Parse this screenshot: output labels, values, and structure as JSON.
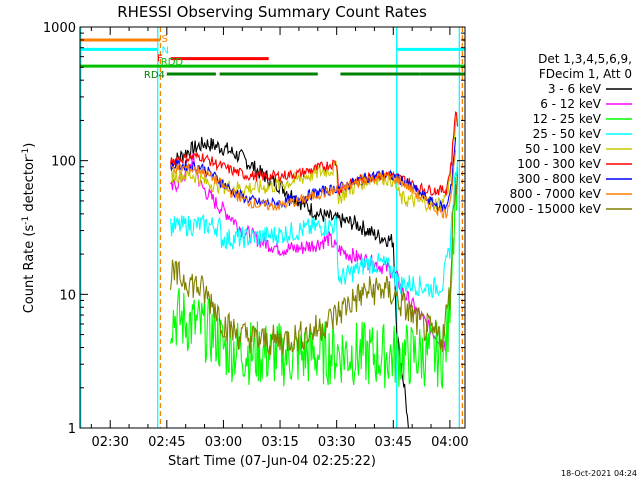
{
  "chart_data": {
    "type": "line",
    "title": "RHESSI Observing Summary Count Rates",
    "xlabel": "Start Time (07-Jun-04 02:25:22)",
    "ylabel_main": "Count Rate (s",
    "ylabel_sup1": "-1",
    "ylabel_mid": " detector",
    "ylabel_sup2": "-1",
    "ylabel_end": ")",
    "y_scale": "log",
    "xlim": [
      142,
      244
    ],
    "ylim": [
      1,
      1000
    ],
    "x_ticks": [
      {
        "v": 150,
        "label": "02:30"
      },
      {
        "v": 165,
        "label": "02:45"
      },
      {
        "v": 180,
        "label": "03:00"
      },
      {
        "v": 195,
        "label": "03:15"
      },
      {
        "v": 210,
        "label": "03:30"
      },
      {
        "v": 225,
        "label": "03:45"
      },
      {
        "v": 240,
        "label": "04:00"
      }
    ],
    "y_ticks": [
      {
        "v": 1,
        "label": "1"
      },
      {
        "v": 10,
        "label": "10"
      },
      {
        "v": 100,
        "label": "100"
      },
      {
        "v": 1000,
        "label": "1000"
      }
    ],
    "legend_header": [
      "Det 1,3,4,5,6,9,",
      "FDecim 1, Att 0"
    ],
    "legend_position": "right",
    "footer_date": "18-Oct-2021 04:24",
    "flags": [
      {
        "name": "S",
        "color": "#ff7f00",
        "segments": [
          [
            142,
            163.3
          ],
          [
            243.3,
            244
          ]
        ],
        "level_value": 800
      },
      {
        "name": "N",
        "color": "#00ffff",
        "segments": [
          [
            142,
            162.6
          ],
          [
            226,
            244
          ]
        ],
        "level_value": 680
      },
      {
        "name": "F",
        "color": "#ff0000",
        "segments": [
          [
            166,
            192
          ]
        ],
        "level_value": 580
      },
      {
        "name": "RDD",
        "color": "#00c000",
        "segments": [
          [
            142,
            244
          ]
        ],
        "level_value": 510
      },
      {
        "name": "RD4",
        "color": "#008000",
        "segments": [
          [
            165,
            178
          ],
          [
            179,
            205
          ],
          [
            211,
            232
          ],
          [
            232,
            244
          ]
        ],
        "level_value": 445
      }
    ],
    "vlines": [
      {
        "x": 142.2,
        "color": "#00ffff",
        "style": "solid"
      },
      {
        "x": 162.6,
        "color": "#00ffff",
        "style": "solid"
      },
      {
        "x": 163.3,
        "color": "#ff7f00",
        "style": "dashed"
      },
      {
        "x": 225.9,
        "color": "#00ffff",
        "style": "solid"
      },
      {
        "x": 242.5,
        "color": "#00ffff",
        "style": "solid"
      },
      {
        "x": 243.3,
        "color": "#ff7f00",
        "style": "dashed"
      }
    ],
    "series": [
      {
        "name": "3 - 6 keV",
        "color": "#000000",
        "jitter": 0.06,
        "points": [
          [
            166,
            95
          ],
          [
            170,
            115
          ],
          [
            175,
            135
          ],
          [
            180,
            125
          ],
          [
            185,
            105
          ],
          [
            190,
            80
          ],
          [
            195,
            65
          ],
          [
            200,
            50
          ],
          [
            205,
            40
          ],
          [
            210,
            36
          ],
          [
            215,
            34
          ],
          [
            220,
            28
          ],
          [
            225,
            25
          ],
          [
            226,
            5
          ],
          [
            227,
            3
          ],
          [
            228,
            2
          ],
          [
            229,
            1
          ]
        ]
      },
      {
        "name": "6 - 12 keV",
        "color": "#ff00ff",
        "jitter": 0.06,
        "points": [
          [
            166,
            60
          ],
          [
            170,
            80
          ],
          [
            172,
            100
          ],
          [
            174,
            65
          ],
          [
            178,
            48
          ],
          [
            182,
            38
          ],
          [
            185,
            30
          ],
          [
            190,
            25
          ],
          [
            195,
            22
          ],
          [
            200,
            22
          ],
          [
            205,
            24
          ],
          [
            208,
            26
          ],
          [
            210,
            22
          ],
          [
            215,
            19
          ],
          [
            220,
            17
          ],
          [
            225,
            15
          ],
          [
            228,
            10
          ],
          [
            232,
            7
          ],
          [
            236,
            5
          ],
          [
            238,
            4.5
          ],
          [
            239,
            4
          ]
        ]
      },
      {
        "name": "12 - 25 keV",
        "color": "#00ff00",
        "jitter": 0.25,
        "points": [
          [
            166,
            7
          ],
          [
            172,
            6
          ],
          [
            178,
            5
          ],
          [
            180,
            4
          ],
          [
            185,
            3.8
          ],
          [
            190,
            3.6
          ],
          [
            200,
            3.5
          ],
          [
            205,
            3.6
          ],
          [
            210,
            3.7
          ],
          [
            215,
            3.6
          ],
          [
            220,
            3.5
          ],
          [
            225,
            3.5
          ],
          [
            230,
            3.5
          ],
          [
            235,
            3.6
          ],
          [
            238,
            3.5
          ],
          [
            239.5,
            5
          ],
          [
            240.5,
            20
          ],
          [
            241.5,
            60
          ],
          [
            242,
            90
          ]
        ]
      },
      {
        "name": "25 - 50 keV",
        "color": "#00ffff",
        "jitter": 0.08,
        "points": [
          [
            166,
            32
          ],
          [
            172,
            33
          ],
          [
            176,
            33
          ],
          [
            179,
            32
          ],
          [
            179.5,
            26
          ],
          [
            182,
            26
          ],
          [
            190,
            27
          ],
          [
            195,
            28
          ],
          [
            200,
            30
          ],
          [
            205,
            32
          ],
          [
            210,
            33
          ],
          [
            210.5,
            13
          ],
          [
            213,
            14
          ],
          [
            218,
            17
          ],
          [
            222,
            17
          ],
          [
            225,
            15
          ],
          [
            226,
            12
          ],
          [
            230,
            12
          ],
          [
            235,
            11
          ],
          [
            238,
            12
          ],
          [
            240,
            22
          ],
          [
            241,
            60
          ],
          [
            242,
            100
          ]
        ]
      },
      {
        "name": "50 - 100 keV",
        "color": "#c8c800",
        "jitter": 0.06,
        "points": [
          [
            166,
            78
          ],
          [
            172,
            78
          ],
          [
            175,
            70
          ],
          [
            179,
            65
          ],
          [
            185,
            62
          ],
          [
            190,
            63
          ],
          [
            195,
            66
          ],
          [
            200,
            73
          ],
          [
            205,
            82
          ],
          [
            210,
            88
          ],
          [
            210.5,
            52
          ],
          [
            213,
            60
          ],
          [
            218,
            72
          ],
          [
            222,
            76
          ],
          [
            225,
            72
          ],
          [
            227,
            52
          ],
          [
            230,
            50
          ],
          [
            235,
            48
          ],
          [
            238,
            48
          ],
          [
            240,
            70
          ],
          [
            241,
            150
          ],
          [
            242,
            200
          ]
        ]
      },
      {
        "name": "100 - 300 keV",
        "color": "#ff0000",
        "jitter": 0.04,
        "points": [
          [
            166,
            100
          ],
          [
            170,
            105
          ],
          [
            174,
            108
          ],
          [
            178,
            95
          ],
          [
            182,
            85
          ],
          [
            186,
            78
          ],
          [
            190,
            76
          ],
          [
            195,
            77
          ],
          [
            200,
            80
          ],
          [
            205,
            88
          ],
          [
            210,
            97
          ],
          [
            210.5,
            60
          ],
          [
            215,
            70
          ],
          [
            220,
            78
          ],
          [
            224,
            78
          ],
          [
            228,
            72
          ],
          [
            232,
            62
          ],
          [
            236,
            60
          ],
          [
            239,
            60
          ],
          [
            240.5,
            100
          ],
          [
            241.5,
            250
          ],
          [
            242,
            180
          ]
        ]
      },
      {
        "name": "300 - 800 keV",
        "color": "#0000ff",
        "jitter": 0.04,
        "points": [
          [
            166,
            92
          ],
          [
            170,
            92
          ],
          [
            174,
            90
          ],
          [
            178,
            75
          ],
          [
            182,
            60
          ],
          [
            186,
            52
          ],
          [
            190,
            48
          ],
          [
            195,
            48
          ],
          [
            200,
            52
          ],
          [
            205,
            58
          ],
          [
            210,
            62
          ],
          [
            213,
            66
          ],
          [
            218,
            75
          ],
          [
            222,
            79
          ],
          [
            225,
            76
          ],
          [
            228,
            70
          ],
          [
            232,
            57
          ],
          [
            236,
            47
          ],
          [
            239,
            44
          ],
          [
            240.5,
            70
          ],
          [
            241.5,
            150
          ]
        ]
      },
      {
        "name": "800 - 7000 keV",
        "color": "#ff7f00",
        "jitter": 0.04,
        "points": [
          [
            166,
            88
          ],
          [
            170,
            88
          ],
          [
            174,
            85
          ],
          [
            178,
            72
          ],
          [
            182,
            58
          ],
          [
            186,
            50
          ],
          [
            190,
            46
          ],
          [
            195,
            46
          ],
          [
            200,
            50
          ],
          [
            205,
            56
          ],
          [
            210,
            60
          ],
          [
            213,
            64
          ],
          [
            218,
            73
          ],
          [
            222,
            76
          ],
          [
            225,
            74
          ],
          [
            228,
            67
          ],
          [
            232,
            54
          ],
          [
            236,
            44
          ],
          [
            239,
            40
          ],
          [
            240.5,
            60
          ],
          [
            241.5,
            120
          ]
        ]
      },
      {
        "name": "7000 - 15000 keV",
        "color": "#808000",
        "jitter": 0.12,
        "points": [
          [
            166,
            14
          ],
          [
            170,
            13
          ],
          [
            174,
            11
          ],
          [
            178,
            8
          ],
          [
            180,
            6
          ],
          [
            184,
            5
          ],
          [
            190,
            4.5
          ],
          [
            195,
            4.5
          ],
          [
            200,
            4.8
          ],
          [
            205,
            5.5
          ],
          [
            210,
            7
          ],
          [
            213,
            8.5
          ],
          [
            218,
            10.5
          ],
          [
            222,
            11
          ],
          [
            225,
            10
          ],
          [
            228,
            8
          ],
          [
            232,
            6
          ],
          [
            236,
            5
          ],
          [
            238,
            4.8
          ],
          [
            240,
            10
          ],
          [
            241,
            50
          ],
          [
            242,
            80
          ]
        ]
      }
    ]
  }
}
